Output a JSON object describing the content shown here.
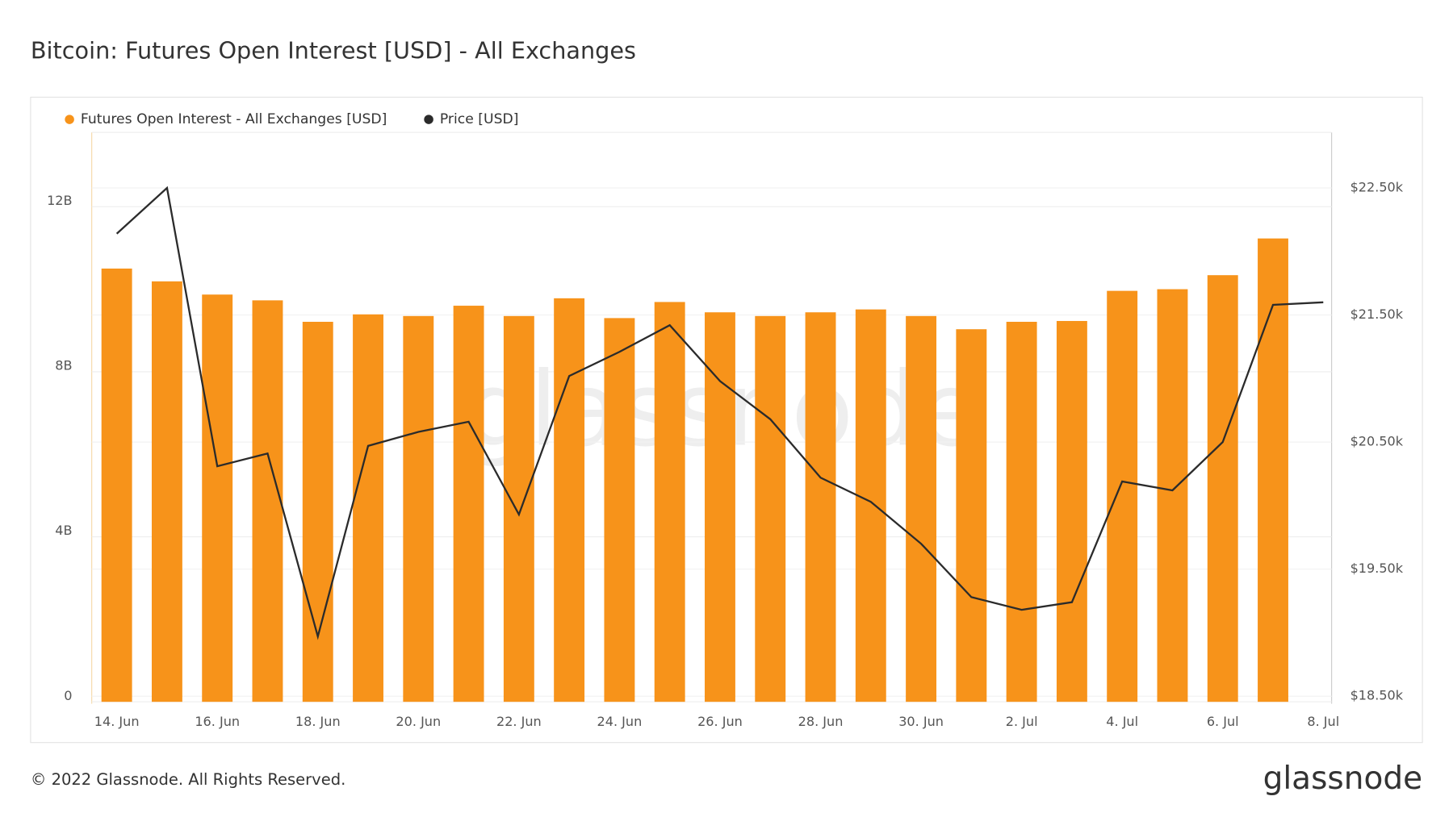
{
  "header": {
    "title": "Bitcoin: Futures Open Interest [USD] - All Exchanges"
  },
  "chart_data": {
    "type": "bar-line",
    "watermark": "glassnode",
    "x": [
      "14. Jun",
      null,
      "16. Jun",
      null,
      "18. Jun",
      null,
      "20. Jun",
      null,
      "22. Jun",
      null,
      "24. Jun",
      null,
      "26. Jun",
      null,
      "28. Jun",
      null,
      "30. Jun",
      null,
      "2. Jul",
      null,
      "4. Jul",
      null,
      "6. Jul",
      null,
      "8. Jul"
    ],
    "series": [
      {
        "name": "Futures Open Interest - All Exchanges [USD]",
        "color": "#f7931a",
        "type": "bar",
        "values": [
          10500000000,
          10190000000,
          9870000000,
          9730000000,
          9210000000,
          9390000000,
          9350000000,
          9600000000,
          9350000000,
          9780000000,
          9300000000,
          9690000000,
          9440000000,
          9350000000,
          9440000000,
          9510000000,
          9350000000,
          9030000000,
          9210000000,
          9230000000,
          9960000000,
          10000000000,
          10340000000,
          11230000000,
          null
        ]
      },
      {
        "name": "Price [USD]",
        "color": "#2b2b2b",
        "type": "line",
        "axis": "y2",
        "values": [
          22140,
          22500,
          20310,
          20410,
          18970,
          20470,
          20580,
          20660,
          19930,
          21020,
          21210,
          21420,
          20980,
          20680,
          20220,
          20030,
          19700,
          19280,
          19180,
          19240,
          20190,
          20120,
          20500,
          21580,
          21600
        ]
      }
    ],
    "ylim": [
      0,
      13800000000
    ],
    "yticks": [
      {
        "value": 0,
        "label": "0"
      },
      {
        "value": 4000000000,
        "label": "4B"
      },
      {
        "value": 8000000000,
        "label": "8B"
      },
      {
        "value": 12000000000,
        "label": "12B"
      }
    ],
    "y2lim": [
      18456,
      22937
    ],
    "y2ticks": [
      {
        "value": 18500,
        "label": "$18.50k"
      },
      {
        "value": 19500,
        "label": "$19.50k"
      },
      {
        "value": 20500,
        "label": "$20.50k"
      },
      {
        "value": 21500,
        "label": "$21.50k"
      },
      {
        "value": 22500,
        "label": "$22.50k"
      }
    ],
    "grid": true
  },
  "footer": {
    "copyright": "© 2022 Glassnode. All Rights Reserved.",
    "logo": "glassnode"
  }
}
